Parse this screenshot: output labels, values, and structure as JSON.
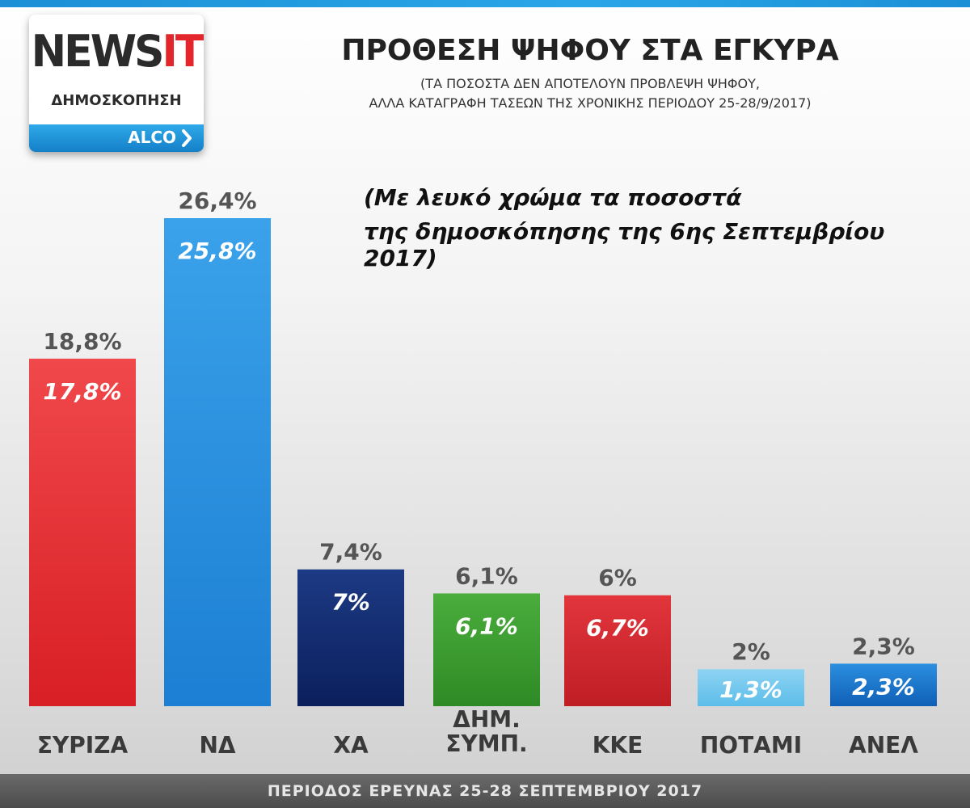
{
  "logo": {
    "brand_main": "NEWS",
    "brand_accent": "IT",
    "subtitle": "ΔΗΜΟΣΚΟΠΗΣΗ",
    "partner": "ALCO"
  },
  "header": {
    "title": "ΠΡΟΘΕΣΗ ΨΗΦΟΥ ΣΤΑ ΕΓΚΥΡΑ",
    "subtitle_line1": "(ΤΑ ΠΟΣΟΣΤΑ ΔΕΝ ΑΠΟΤΕΛΟΥΝ ΠΡΟΒΛΕΨΗ ΨΗΦΟΥ,",
    "subtitle_line2": "ΑΛΛΑ ΚΑΤΑΓΡΑΦΗ ΤΑΣΕΩΝ ΤΗΣ ΧΡΟΝΙΚΗΣ ΠΕΡΙΟΔΟΥ 25-28/9/2017)"
  },
  "note": {
    "line1": "(Με λευκό χρώμα τα ποσοστά",
    "line2": "της δημοσκόπησης της 6ης Σεπτεμβρίου 2017)"
  },
  "footer": {
    "text": "ΠΕΡΙΟΔΟΣ ΕΡΕΥΝΑΣ 25-28 ΣΕΠΤΕΜΒΡΙΟΥ 2017"
  },
  "chart_data": {
    "type": "bar",
    "title": "ΠΡΟΘΕΣΗ ΨΗΦΟΥ ΣΤΑ ΕΓΚΥΡΑ",
    "categories": [
      [
        "ΣΥΡΙΖΑ"
      ],
      [
        "ΝΔ"
      ],
      [
        "ΧΑ"
      ],
      [
        "ΔΗΜ.",
        "ΣΥΜΠ."
      ],
      [
        "ΚΚΕ"
      ],
      [
        "ΠΟΤΑΜΙ"
      ],
      [
        "ΑΝΕΛ"
      ]
    ],
    "values": [
      18.8,
      26.4,
      7.4,
      6.1,
      6,
      2,
      2.3
    ],
    "value_labels": [
      "18,8%",
      "26,4%",
      "7,4%",
      "6,1%",
      "6%",
      "2%",
      "2,3%"
    ],
    "previous_values": [
      17.8,
      25.8,
      7,
      6.1,
      6.7,
      1.3,
      2.3
    ],
    "previous_labels": [
      "17,8%",
      "25,8%",
      "7%",
      "6,1%",
      "6,7%",
      "1,3%",
      "2,3%"
    ],
    "bar_colors": [
      [
        "#f0484b",
        "#d81f25"
      ],
      [
        "#3aa2ea",
        "#1d7fd3"
      ],
      [
        "#1d3a84",
        "#0b1f5c"
      ],
      [
        "#4aad3c",
        "#2e8a25"
      ],
      [
        "#e2353c",
        "#bf1e25"
      ],
      [
        "#8ed3f3",
        "#5cbde9"
      ],
      [
        "#2b8fe0",
        "#0f5fb6"
      ]
    ],
    "ylim": [
      0,
      26.4
    ],
    "grid": false,
    "legend": "none"
  }
}
